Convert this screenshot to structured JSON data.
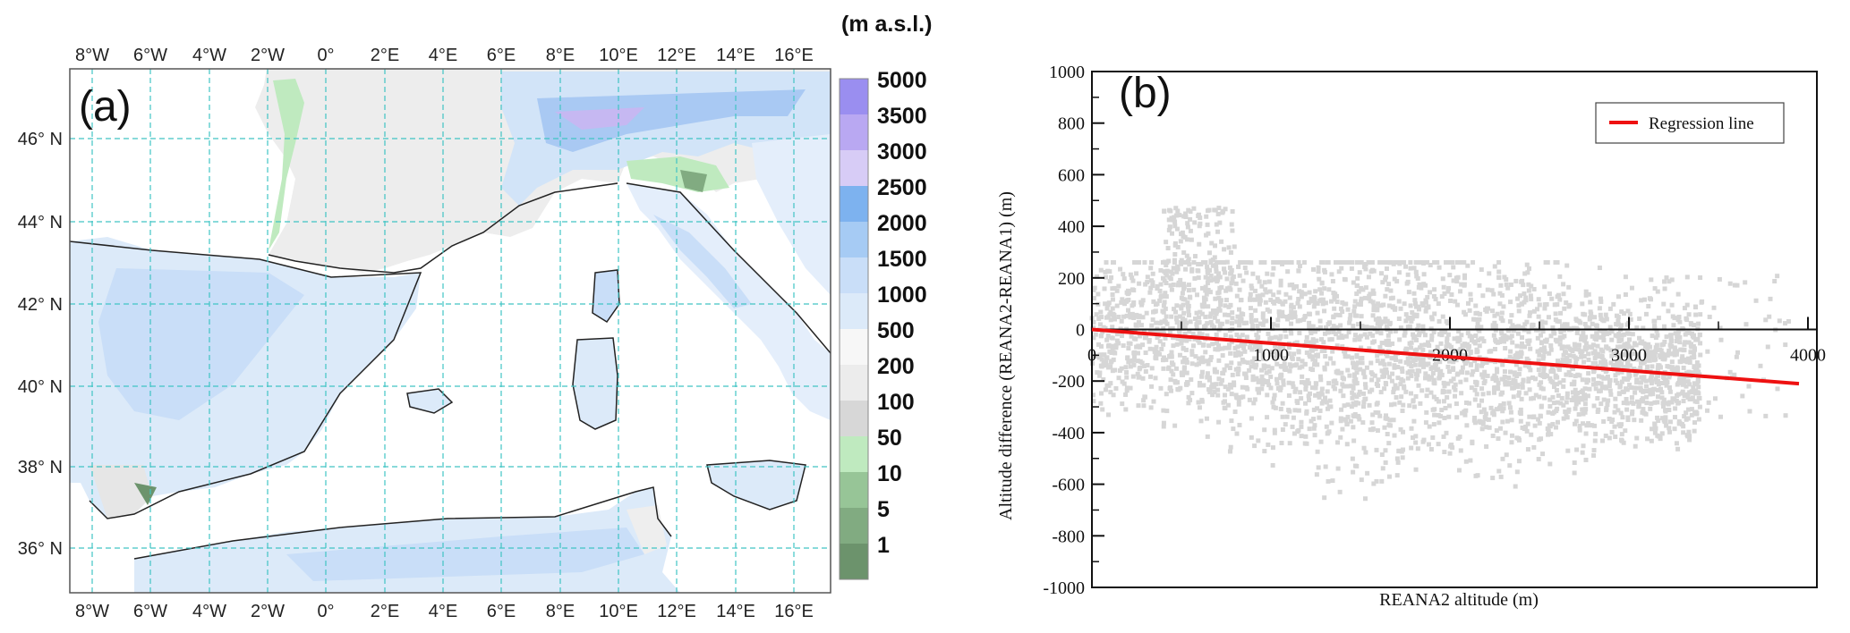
{
  "panel_a": {
    "label": "(a)",
    "unit_label": "(m a.s.l.)",
    "lon_labels": [
      "8°W",
      "6°W",
      "4°W",
      "2°W",
      "0°",
      "2°E",
      "4°E",
      "6°E",
      "8°E",
      "10°E",
      "12°E",
      "14°E",
      "16°E"
    ],
    "lat_labels": [
      "46° N",
      "44° N",
      "42° N",
      "40° N",
      "38° N",
      "36° N"
    ],
    "colorbar": {
      "labels": [
        "5000",
        "3500",
        "3000",
        "2500",
        "2000",
        "1500",
        "1000",
        "500",
        "200",
        "100",
        "50",
        "10",
        "5",
        "1"
      ],
      "colors": [
        "#9a8ef0",
        "#b9a8f2",
        "#d7ccf6",
        "#7db2ef",
        "#a6cbf4",
        "#c9def8",
        "#dceaf9",
        "#f7f7f7",
        "#ececec",
        "#d7d7d7",
        "#bfeabf",
        "#97c597",
        "#81ab81",
        "#6c936c"
      ]
    },
    "colors": {
      "sea": "#ffffff",
      "grid": "#40c4c4",
      "coast": "#222222"
    }
  },
  "chart_data": {
    "type": "scatter",
    "label": "(b)",
    "xlabel": "REANA2 altitude (m)",
    "ylabel": "Altitude difference (REANA2-REANA1) (m)",
    "xlim": [
      0,
      4000
    ],
    "ylim": [
      -1000,
      1000
    ],
    "x_ticks": [
      0,
      1000,
      2000,
      3000,
      4000
    ],
    "y_ticks": [
      1000,
      800,
      600,
      400,
      200,
      0,
      -200,
      -400,
      -600,
      -800,
      -1000
    ],
    "legend": {
      "entries": [
        "Regression line"
      ],
      "placement": "top-right"
    },
    "series": [
      {
        "name": "Regression line",
        "type": "line",
        "x": [
          0,
          3950
        ],
        "y": [
          0,
          -210
        ],
        "color": "#ee1111"
      }
    ],
    "scatter_color": "#d6d6d6",
    "scatter_density_note": "dense cloud of points spanning x 0-3900, y roughly -800 to 480"
  }
}
